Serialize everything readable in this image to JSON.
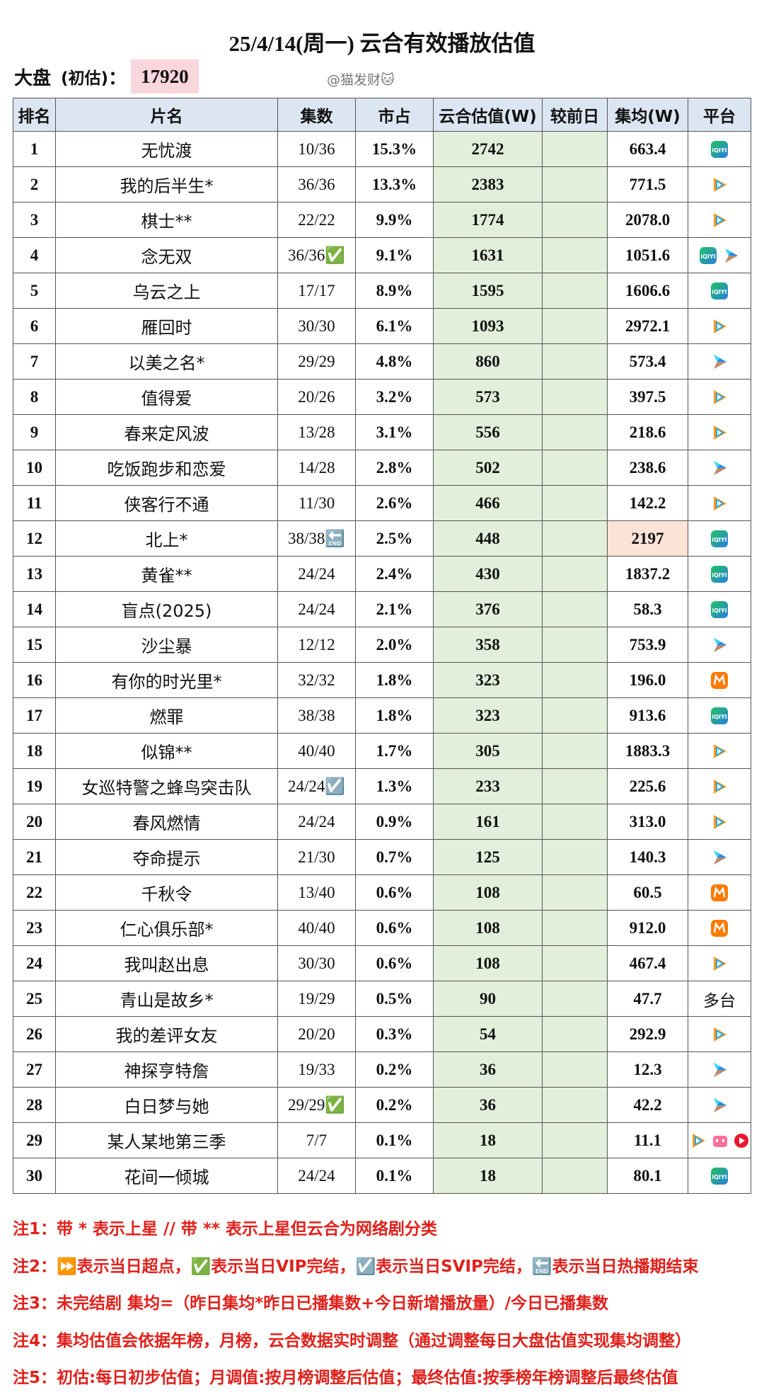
{
  "title": "25/4/14(周一) 云合有效播放估值",
  "summary": {
    "label": "大盘",
    "sub": "(初估)",
    "colon": "：",
    "value": "17920"
  },
  "watermark": "@猫发财🐱",
  "table": {
    "headers": [
      "排名",
      "片名",
      "集数",
      "市占",
      "云合估值(W)",
      "较前日",
      "集均(W)",
      "平台"
    ],
    "rows": [
      {
        "rank": "1",
        "name": "无忧渡",
        "episodes": "10/36",
        "share": "15.3%",
        "estimate": "2742",
        "average": "663.4"
      },
      {
        "rank": "2",
        "name": "我的后半生*",
        "episodes": "36/36",
        "share": "13.3%",
        "estimate": "2383",
        "average": "771.5"
      },
      {
        "rank": "3",
        "name": "棋士**",
        "episodes": "22/22",
        "share": "9.9%",
        "estimate": "1774",
        "average": "2078.0"
      },
      {
        "rank": "4",
        "name": "念无双",
        "episodes": "36/36✅",
        "share": "9.1%",
        "estimate": "1631",
        "average": "1051.6"
      },
      {
        "rank": "5",
        "name": "乌云之上",
        "episodes": "17/17",
        "share": "8.9%",
        "estimate": "1595",
        "average": "1606.6"
      },
      {
        "rank": "6",
        "name": "雁回时",
        "episodes": "30/30",
        "share": "6.1%",
        "estimate": "1093",
        "average": "2972.1"
      },
      {
        "rank": "7",
        "name": "以美之名*",
        "episodes": "29/29",
        "share": "4.8%",
        "estimate": "860",
        "average": "573.4"
      },
      {
        "rank": "8",
        "name": "值得爱",
        "episodes": "20/26",
        "share": "3.2%",
        "estimate": "573",
        "average": "397.5"
      },
      {
        "rank": "9",
        "name": "春来定风波",
        "episodes": "13/28",
        "share": "3.1%",
        "estimate": "556",
        "average": "218.6"
      },
      {
        "rank": "10",
        "name": "吃饭跑步和恋爱",
        "episodes": "14/28",
        "share": "2.8%",
        "estimate": "502",
        "average": "238.6"
      },
      {
        "rank": "11",
        "name": "侠客行不通",
        "episodes": "11/30",
        "share": "2.6%",
        "estimate": "466",
        "average": "142.2"
      },
      {
        "rank": "12",
        "name": "北上*",
        "episodes": "38/38🔚",
        "share": "2.5%",
        "estimate": "448",
        "average": "2197"
      },
      {
        "rank": "13",
        "name": "黄雀**",
        "episodes": "24/24",
        "share": "2.4%",
        "estimate": "430",
        "average": "1837.2"
      },
      {
        "rank": "14",
        "name": "盲点(2025)",
        "episodes": "24/24",
        "share": "2.1%",
        "estimate": "376",
        "average": "58.3"
      },
      {
        "rank": "15",
        "name": "沙尘暴",
        "episodes": "12/12",
        "share": "2.0%",
        "estimate": "358",
        "average": "753.9"
      },
      {
        "rank": "16",
        "name": "有你的时光里*",
        "episodes": "32/32",
        "share": "1.8%",
        "estimate": "323",
        "average": "196.0"
      },
      {
        "rank": "17",
        "name": "燃罪",
        "episodes": "38/38",
        "share": "1.8%",
        "estimate": "323",
        "average": "913.6"
      },
      {
        "rank": "18",
        "name": "似锦**",
        "episodes": "40/40",
        "share": "1.7%",
        "estimate": "305",
        "average": "1883.3"
      },
      {
        "rank": "19",
        "name": "女巡特警之蜂鸟突击队",
        "episodes": "24/24☑️",
        "share": "1.3%",
        "estimate": "233",
        "average": "225.6"
      },
      {
        "rank": "20",
        "name": "春风燃情",
        "episodes": "24/24",
        "share": "0.9%",
        "estimate": "161",
        "average": "313.0"
      },
      {
        "rank": "21",
        "name": "夺命提示",
        "episodes": "21/30",
        "share": "0.7%",
        "estimate": "125",
        "average": "140.3"
      },
      {
        "rank": "22",
        "name": "千秋令",
        "episodes": "13/40",
        "share": "0.6%",
        "estimate": "108",
        "average": "60.5"
      },
      {
        "rank": "23",
        "name": "仁心俱乐部*",
        "episodes": "40/40",
        "share": "0.6%",
        "estimate": "108",
        "average": "912.0"
      },
      {
        "rank": "24",
        "name": "我叫赵出息",
        "episodes": "30/30",
        "share": "0.6%",
        "estimate": "108",
        "average": "467.4"
      },
      {
        "rank": "25",
        "name": "青山是故乡*",
        "episodes": "19/29",
        "share": "0.5%",
        "estimate": "90",
        "average": "47.7",
        "platform": "多台"
      },
      {
        "rank": "26",
        "name": "我的差评女友",
        "episodes": "20/20",
        "share": "0.3%",
        "estimate": "54",
        "average": "292.9"
      },
      {
        "rank": "27",
        "name": "神探亨特詹",
        "episodes": "19/33",
        "share": "0.2%",
        "estimate": "36",
        "average": "12.3"
      },
      {
        "rank": "28",
        "name": "白日梦与她",
        "episodes": "29/29✅",
        "share": "0.2%",
        "estimate": "36",
        "average": "42.2"
      },
      {
        "rank": "29",
        "name": "某人某地第三季",
        "episodes": "7/7",
        "share": "0.1%",
        "estimate": "18",
        "average": "11.1"
      },
      {
        "rank": "30",
        "name": "花间一倾城",
        "episodes": "24/24",
        "share": "0.1%",
        "estimate": "18",
        "average": "80.1"
      }
    ]
  },
  "notes": [
    "注1：带 * 表示上星 // 带 ** 表示上星但云合为网络剧分类",
    "注2：⏩表示当日超点，✅表示当日VIP完结，☑️表示当日SVIP完结，🔚表示当日热播期结束",
    "注3：未完结剧 集均=（昨日集均*昨日已播集数+今日新增播放量）/今日已播集数",
    "注4：集均估值会依据年榜，月榜，云合数据实时调整（通过调整每日大盘估值实现集均调整）",
    "注5：初估:每日初步估值；月调值:按月榜调整后估值；最终估值:按季榜年榜调整后最终估值"
  ]
}
